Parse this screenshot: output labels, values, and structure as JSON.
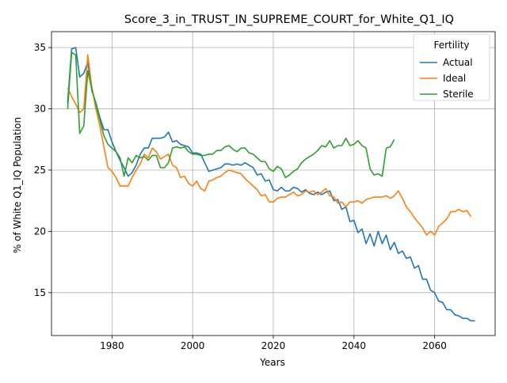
{
  "chart_data": {
    "type": "line",
    "title": "Score_3_in_TRUST_IN_SUPREME_COURT_for_White_Q1_IQ",
    "xlabel": "Years",
    "ylabel": "% of White Q1_IQ Population",
    "xlim": [
      1965,
      2075
    ],
    "ylim": [
      11.5,
      36.3
    ],
    "xticks": [
      1980,
      2000,
      2020,
      2040,
      2060
    ],
    "yticks": [
      15,
      20,
      25,
      30,
      35
    ],
    "grid": true,
    "legend": {
      "title": "Fertility",
      "placement": "top-right"
    },
    "series": [
      {
        "name": "Actual",
        "color": "#1f77b4",
        "x_start": 1969,
        "values": [
          30.5,
          34.9,
          35.0,
          32.6,
          32.9,
          33.8,
          31.5,
          30.5,
          29.3,
          28.3,
          28.3,
          27.3,
          26.5,
          25.8,
          25.2,
          24.5,
          24.8,
          25.4,
          26.3,
          26.8,
          26.8,
          27.6,
          27.6,
          27.6,
          27.7,
          28.1,
          27.3,
          27.4,
          27.1,
          27.0,
          26.9,
          26.4,
          26.4,
          26.3,
          25.6,
          24.9,
          25.0,
          25.1,
          25.2,
          25.5,
          25.5,
          25.4,
          25.5,
          25.4,
          25.6,
          25.4,
          25.2,
          24.6,
          24.7,
          24.1,
          24.2,
          23.4,
          23.3,
          23.6,
          23.3,
          23.3,
          23.6,
          23.5,
          23.2,
          23.4,
          23.1,
          23.0,
          23.2,
          23.0,
          23.2,
          23.3,
          22.5,
          22.6,
          21.8,
          22.0,
          20.8,
          20.9,
          19.9,
          20.2,
          19.0,
          19.8,
          18.8,
          20.0,
          19.0,
          19.7,
          18.5,
          19.1,
          18.2,
          18.4,
          17.8,
          17.9,
          17.0,
          17.2,
          16.1,
          16.1,
          15.2,
          15.0,
          14.3,
          14.2,
          13.6,
          13.6,
          13.2,
          13.1,
          12.9,
          12.9,
          12.7,
          12.7
        ]
      },
      {
        "name": "Ideal",
        "color": "#ff7f0e",
        "x_start": 1969,
        "values": [
          31.7,
          31.0,
          30.4,
          29.7,
          30.0,
          34.4,
          31.8,
          30.0,
          28.6,
          26.9,
          25.2,
          24.9,
          24.4,
          23.7,
          23.7,
          23.7,
          24.4,
          25.0,
          25.5,
          26.3,
          26.0,
          26.8,
          26.5,
          25.9,
          26.1,
          26.3,
          25.4,
          25.2,
          24.4,
          24.5,
          23.9,
          23.7,
          24.1,
          23.5,
          23.3,
          24.1,
          24.2,
          24.4,
          24.5,
          24.8,
          25.0,
          24.9,
          24.8,
          24.7,
          24.3,
          24.0,
          23.7,
          23.4,
          22.9,
          23.0,
          22.4,
          22.4,
          22.7,
          22.8,
          22.8,
          23.0,
          23.2,
          22.9,
          23.0,
          23.3,
          23.2,
          23.3,
          23.0,
          23.2,
          23.5,
          22.9,
          22.8,
          22.3,
          22.4,
          22.0,
          22.4,
          22.4,
          22.5,
          22.3,
          22.6,
          22.7,
          22.8,
          22.8,
          22.8,
          22.9,
          22.7,
          22.9,
          23.3,
          22.7,
          22.0,
          21.6,
          21.1,
          20.7,
          20.3,
          19.7,
          20.0,
          19.7,
          20.4,
          20.7,
          21.0,
          21.6,
          21.6,
          21.8,
          21.6,
          21.7,
          21.2
        ]
      },
      {
        "name": "Sterile",
        "color": "#2ca02c",
        "x_start": 1969,
        "values": [
          30.0,
          34.6,
          34.4,
          28.0,
          28.6,
          33.1,
          31.6,
          30.4,
          29.1,
          27.8,
          27.1,
          26.8,
          26.5,
          26.0,
          24.5,
          26.0,
          25.6,
          26.2,
          26.0,
          26.1,
          25.8,
          26.2,
          26.2,
          25.2,
          25.2,
          25.6,
          26.8,
          26.9,
          26.8,
          26.9,
          26.5,
          26.3,
          26.3,
          26.2,
          26.2,
          26.3,
          26.3,
          26.6,
          26.6,
          26.9,
          27.0,
          26.7,
          26.5,
          26.8,
          26.8,
          26.4,
          26.3,
          26.0,
          25.7,
          25.7,
          25.1,
          24.9,
          25.3,
          25.1,
          24.4,
          24.6,
          24.9,
          25.1,
          25.6,
          25.9,
          26.1,
          26.3,
          26.6,
          27.0,
          26.9,
          27.4,
          26.8,
          27.0,
          27.0,
          27.6,
          27.0,
          27.1,
          27.4,
          27.0,
          26.8,
          25.1,
          24.6,
          24.7,
          24.5,
          26.8,
          26.9,
          27.5
        ]
      }
    ]
  }
}
